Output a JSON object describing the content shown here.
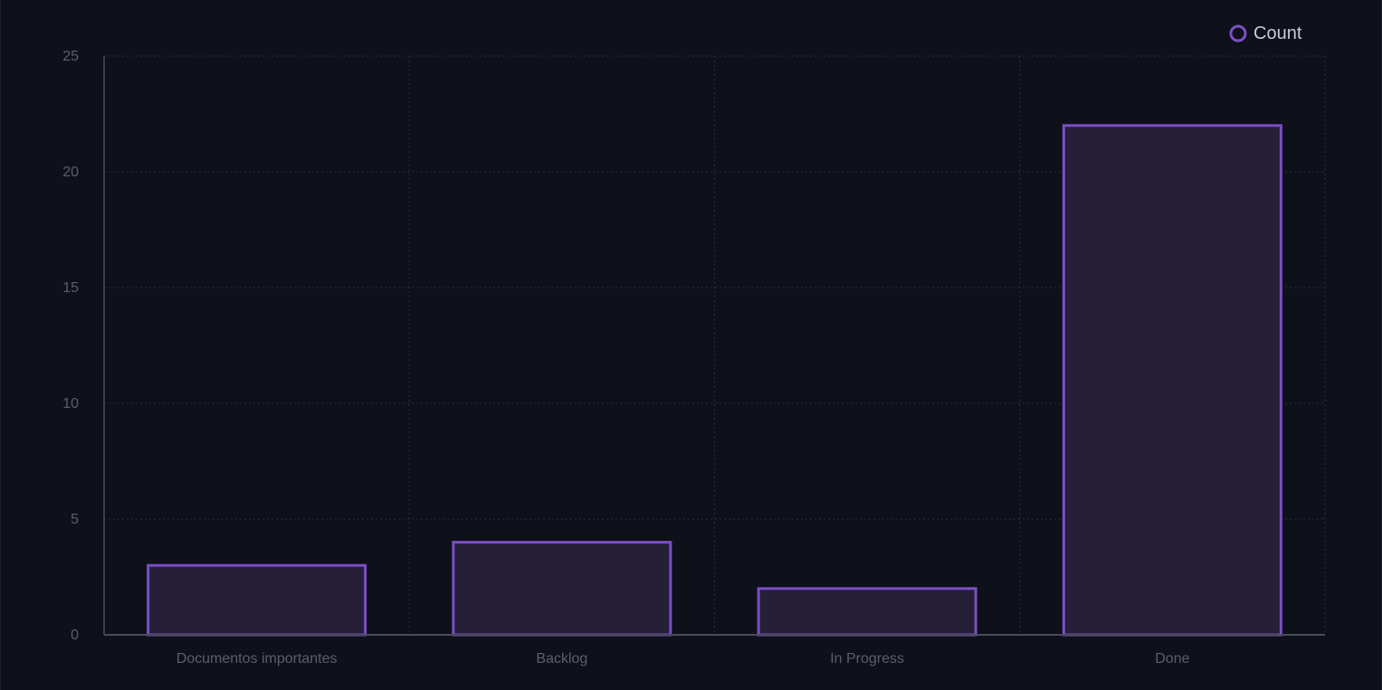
{
  "chart_data": {
    "type": "bar",
    "categories": [
      "Documentos importantes",
      "Backlog",
      "In Progress",
      "Done"
    ],
    "series": [
      {
        "name": "Count",
        "values": [
          3,
          4,
          2,
          22
        ]
      }
    ],
    "title": "",
    "xlabel": "",
    "ylabel": "",
    "ylim": [
      0,
      25
    ],
    "yticks": [
      "0",
      "5",
      "10",
      "15",
      "20",
      "25"
    ],
    "grid": true,
    "legend": "top-right",
    "colors": {
      "bar_stroke": "#7b4fc4",
      "bar_fill": "#251f38",
      "grid": "#2a2e39",
      "axis": "#4a4e5a"
    }
  }
}
